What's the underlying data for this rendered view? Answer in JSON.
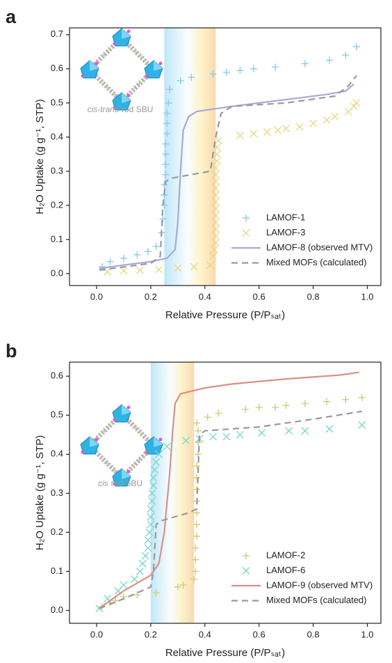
{
  "chart_data": [
    {
      "type": "line",
      "panel_label": "a",
      "xlabel": "Relative Pressure (P/Pₛₐₜ)",
      "ylabel": "H₂O Uptake (g g⁻¹, STP)",
      "annotation": [
        "cis-trans",
        "rod SBU"
      ],
      "xlim": [
        -0.1,
        1.05
      ],
      "ylim": [
        -0.035,
        0.72
      ],
      "xticks": [
        {
          "value": 0,
          "label": "0.0"
        },
        0.2,
        0.4,
        0.6,
        0.8,
        {
          "value": 1,
          "label": "1.0"
        }
      ],
      "yticks": [
        {
          "value": 0,
          "label": "0.0"
        },
        0.1,
        0.2,
        0.3,
        0.4,
        0.5,
        0.6,
        0.7
      ],
      "highlight_range": [
        0.25,
        0.44
      ],
      "legend": "lower right",
      "series": [
        {
          "name": "LAMOF-1",
          "color": "#86cdee",
          "marker": "plus",
          "linestyle": null,
          "x": [
            0.02,
            0.05,
            0.1,
            0.15,
            0.19,
            0.22,
            0.24,
            0.245,
            0.25,
            0.25,
            0.25,
            0.255,
            0.255,
            0.255,
            0.255,
            0.26,
            0.26,
            0.26,
            0.265,
            0.27,
            0.31,
            0.35,
            0.43,
            0.48,
            0.53,
            0.58,
            0.66,
            0.77,
            0.86,
            0.92,
            0.96
          ],
          "values": [
            0.02,
            0.035,
            0.045,
            0.055,
            0.065,
            0.08,
            0.12,
            0.16,
            0.2,
            0.23,
            0.26,
            0.29,
            0.32,
            0.35,
            0.38,
            0.41,
            0.44,
            0.47,
            0.5,
            0.54,
            0.565,
            0.575,
            0.585,
            0.59,
            0.595,
            0.6,
            0.605,
            0.615,
            0.625,
            0.64,
            0.665
          ]
        },
        {
          "name": "LAMOF-3",
          "color": "#ecd78a",
          "marker": "x",
          "linestyle": null,
          "x": [
            0.04,
            0.1,
            0.16,
            0.23,
            0.3,
            0.36,
            0.42,
            0.43,
            0.435,
            0.44,
            0.44,
            0.44,
            0.44,
            0.44,
            0.44,
            0.44,
            0.44,
            0.44,
            0.44,
            0.44,
            0.44,
            0.445,
            0.445,
            0.445,
            0.45,
            0.53,
            0.58,
            0.63,
            0.67,
            0.7,
            0.75,
            0.8,
            0.85,
            0.88,
            0.93,
            0.95,
            0.96
          ],
          "values": [
            0.005,
            0.008,
            0.01,
            0.012,
            0.016,
            0.02,
            0.025,
            0.05,
            0.07,
            0.09,
            0.11,
            0.13,
            0.15,
            0.17,
            0.19,
            0.21,
            0.23,
            0.25,
            0.27,
            0.29,
            0.31,
            0.33,
            0.35,
            0.37,
            0.39,
            0.405,
            0.41,
            0.415,
            0.42,
            0.425,
            0.43,
            0.44,
            0.45,
            0.46,
            0.475,
            0.49,
            0.5
          ]
        },
        {
          "name": "LAMOF-8 (observed MTV)",
          "color": "#a5aad6",
          "marker": null,
          "linestyle": "solid",
          "x": [
            0.01,
            0.1,
            0.2,
            0.26,
            0.29,
            0.3,
            0.31,
            0.32,
            0.34,
            0.37,
            0.5,
            0.7,
            0.85,
            0.92,
            0.95
          ],
          "values": [
            0.015,
            0.025,
            0.035,
            0.045,
            0.07,
            0.15,
            0.3,
            0.42,
            0.46,
            0.475,
            0.49,
            0.51,
            0.525,
            0.535,
            0.555
          ]
        },
        {
          "name": "Mixed MOFs (calculated)",
          "color": "#999999",
          "marker": null,
          "linestyle": "dashed",
          "x": [
            0.01,
            0.2,
            0.235,
            0.245,
            0.255,
            0.28,
            0.42,
            0.44,
            0.46,
            0.5,
            0.7,
            0.88,
            0.93,
            0.96
          ],
          "values": [
            0.01,
            0.03,
            0.05,
            0.2,
            0.27,
            0.28,
            0.3,
            0.4,
            0.47,
            0.49,
            0.5,
            0.52,
            0.55,
            0.58
          ]
        }
      ]
    },
    {
      "type": "line",
      "panel_label": "b",
      "xlabel": "Relative Pressure (P/Pₛₐₜ)",
      "ylabel": "H₂O Uptake (g g⁻¹, STP)",
      "annotation": [
        "cis",
        "rod SBU"
      ],
      "xlim": [
        -0.1,
        1.05
      ],
      "ylim": [
        -0.033,
        0.636
      ],
      "xticks": [
        {
          "value": 0,
          "label": "0.0"
        },
        0.2,
        0.4,
        0.6,
        0.8,
        {
          "value": 1,
          "label": "1.0"
        }
      ],
      "yticks": [
        {
          "value": 0,
          "label": "0.0"
        },
        0.1,
        0.2,
        0.3,
        0.4,
        0.5,
        0.6
      ],
      "highlight_range": [
        0.2,
        0.36
      ],
      "legend": "lower right",
      "series": [
        {
          "name": "LAMOF-2",
          "color": "#c8d07a",
          "marker": "plus",
          "linestyle": null,
          "x": [
            0.02,
            0.05,
            0.07,
            0.1,
            0.15,
            0.22,
            0.3,
            0.32,
            0.36,
            0.365,
            0.365,
            0.365,
            0.37,
            0.37,
            0.37,
            0.37,
            0.37,
            0.37,
            0.37,
            0.375,
            0.375,
            0.375,
            0.37,
            0.41,
            0.45,
            0.55,
            0.6,
            0.66,
            0.7,
            0.77,
            0.85,
            0.92,
            0.98
          ],
          "values": [
            0.01,
            0.02,
            0.025,
            0.035,
            0.04,
            0.045,
            0.06,
            0.065,
            0.08,
            0.1,
            0.13,
            0.16,
            0.19,
            0.22,
            0.25,
            0.28,
            0.31,
            0.34,
            0.37,
            0.4,
            0.43,
            0.46,
            0.48,
            0.495,
            0.505,
            0.515,
            0.52,
            0.52,
            0.525,
            0.53,
            0.535,
            0.54,
            0.545
          ]
        },
        {
          "name": "LAMOF-6",
          "color": "#7fd6cc",
          "marker": "x",
          "linestyle": null,
          "x": [
            0.01,
            0.04,
            0.08,
            0.1,
            0.14,
            0.16,
            0.17,
            0.18,
            0.19,
            0.19,
            0.195,
            0.2,
            0.2,
            0.2,
            0.205,
            0.205,
            0.21,
            0.21,
            0.215,
            0.22,
            0.23,
            0.26,
            0.33,
            0.38,
            0.43,
            0.48,
            0.53,
            0.61,
            0.71,
            0.77,
            0.86,
            0.98
          ],
          "values": [
            0.005,
            0.03,
            0.05,
            0.065,
            0.08,
            0.1,
            0.12,
            0.14,
            0.16,
            0.18,
            0.2,
            0.22,
            0.24,
            0.26,
            0.28,
            0.3,
            0.32,
            0.34,
            0.36,
            0.38,
            0.4,
            0.42,
            0.435,
            0.44,
            0.445,
            0.445,
            0.45,
            0.455,
            0.46,
            0.46,
            0.465,
            0.475
          ]
        },
        {
          "name": "LAMOF-9 (observed MTV)",
          "color": "#d99089",
          "marker": null,
          "linestyle": "solid",
          "x": [
            0.01,
            0.1,
            0.2,
            0.23,
            0.25,
            0.27,
            0.28,
            0.29,
            0.31,
            0.4,
            0.5,
            0.7,
            0.9,
            0.97
          ],
          "values": [
            0.005,
            0.05,
            0.09,
            0.12,
            0.2,
            0.35,
            0.45,
            0.53,
            0.555,
            0.57,
            0.58,
            0.593,
            0.603,
            0.61
          ]
        },
        {
          "name": "Mixed MOFs (calculated)",
          "color": "#999999",
          "marker": null,
          "linestyle": "dashed",
          "x": [
            0.01,
            0.1,
            0.2,
            0.21,
            0.22,
            0.24,
            0.34,
            0.37,
            0.38,
            0.4,
            0.6,
            0.8,
            0.98
          ],
          "values": [
            0.005,
            0.03,
            0.06,
            0.1,
            0.22,
            0.23,
            0.25,
            0.26,
            0.45,
            0.46,
            0.47,
            0.49,
            0.51
          ]
        }
      ]
    }
  ]
}
